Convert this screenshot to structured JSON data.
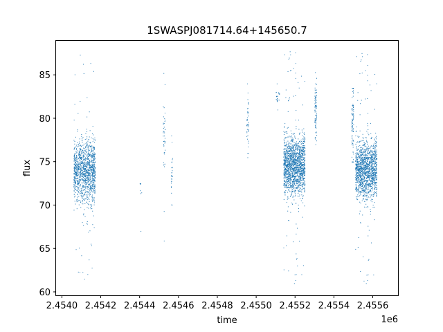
{
  "chart_data": {
    "type": "scatter",
    "title": "1SWASPJ081714.64+145650.7",
    "xlabel": "time",
    "ylabel": "flux",
    "x_offset_label": "1e6",
    "xlim": [
      2.45397,
      2.45573
    ],
    "ylim": [
      59.6,
      89.0
    ],
    "x_ticks": [
      2.454,
      2.4542,
      2.4544,
      2.4546,
      2.4548,
      2.455,
      2.4552,
      2.4554,
      2.4556
    ],
    "x_tick_labels": [
      "2.4540",
      "2.4542",
      "2.4544",
      "2.4546",
      "2.4548",
      "2.4550",
      "2.4552",
      "2.4554",
      "2.4556"
    ],
    "y_ticks": [
      60,
      65,
      70,
      75,
      80,
      85
    ],
    "y_tick_labels": [
      "60",
      "65",
      "70",
      "75",
      "80",
      "85"
    ],
    "grid": false,
    "point_color": "#1f77b4",
    "clusters": [
      {
        "x_start": 2.45406,
        "x_end": 2.45417,
        "y_center": 74.0,
        "y_spread": 3.2,
        "count": 1300,
        "outlier_low": 61.5,
        "outlier_high": 87.3
      },
      {
        "x_start": 2.4544,
        "x_end": 2.45441,
        "y_center": 72.0,
        "y_spread": 0.8,
        "count": 6,
        "outlier_low": 67.0,
        "outlier_high": 72.5
      },
      {
        "x_start": 2.45452,
        "x_end": 2.45453,
        "y_center": 78.0,
        "y_spread": 3.5,
        "count": 40,
        "outlier_low": 65.9,
        "outlier_high": 85.2
      },
      {
        "x_start": 2.45456,
        "x_end": 2.45457,
        "y_center": 73.5,
        "y_spread": 2.5,
        "count": 25,
        "outlier_low": 70.0,
        "outlier_high": 78.0
      },
      {
        "x_start": 2.45495,
        "x_end": 2.45496,
        "y_center": 79.5,
        "y_spread": 2.5,
        "count": 40,
        "outlier_low": 75.5,
        "outlier_high": 84.0
      },
      {
        "x_start": 2.4551,
        "x_end": 2.45512,
        "y_center": 82.5,
        "y_spread": 0.8,
        "count": 20,
        "outlier_low": 81.0,
        "outlier_high": 84.0
      },
      {
        "x_start": 2.45514,
        "x_end": 2.45525,
        "y_center": 74.5,
        "y_spread": 3.0,
        "count": 1700,
        "outlier_low": 61.0,
        "outlier_high": 87.7
      },
      {
        "x_start": 2.4553,
        "x_end": 2.45531,
        "y_center": 81.0,
        "y_spread": 3.0,
        "count": 80,
        "outlier_low": 77.0,
        "outlier_high": 85.3
      },
      {
        "x_start": 2.45549,
        "x_end": 2.4555,
        "y_center": 79.0,
        "y_spread": 3.5,
        "count": 90,
        "outlier_low": 75.0,
        "outlier_high": 83.5
      },
      {
        "x_start": 2.45551,
        "x_end": 2.45562,
        "y_center": 74.0,
        "y_spread": 3.0,
        "count": 1500,
        "outlier_low": 61.0,
        "outlier_high": 87.5
      }
    ]
  }
}
